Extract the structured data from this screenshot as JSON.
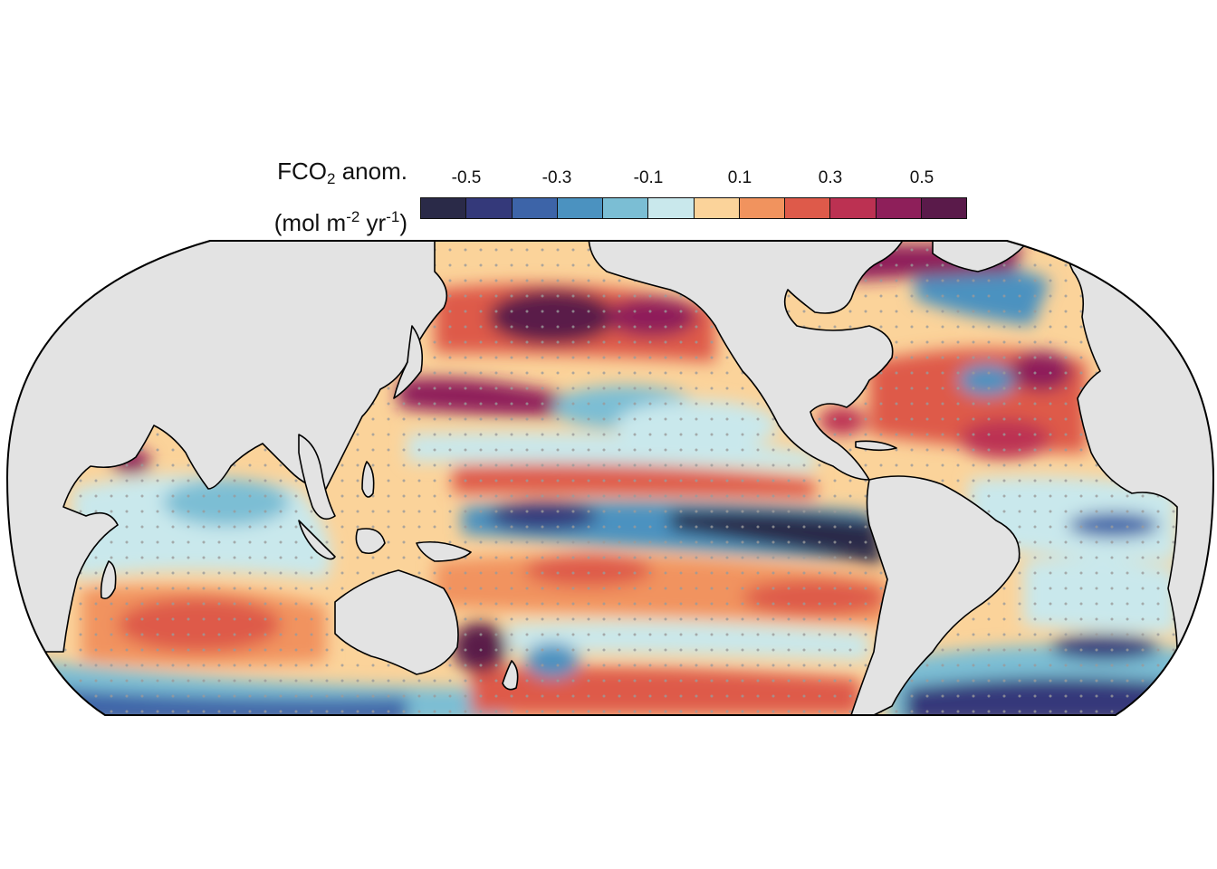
{
  "legend": {
    "title_line1_main": "FCO",
    "title_line1_sub": "2",
    "title_line1_rest": " anom.",
    "title_line2_a": "(mol m",
    "title_line2_sup1": "-2",
    "title_line2_b": " yr",
    "title_line2_sup2": "-1",
    "title_line2_c": ")",
    "tick_labels": [
      "-0.5",
      "-0.3",
      "-0.1",
      "0.1",
      "0.3",
      "0.5"
    ],
    "bins": [
      -0.6,
      -0.5,
      -0.4,
      -0.3,
      -0.2,
      -0.1,
      0.0,
      0.1,
      0.2,
      0.3,
      0.4,
      0.5,
      0.6
    ],
    "colors": [
      "#2a2a48",
      "#34397a",
      "#3d64a8",
      "#4b92c0",
      "#7bbed4",
      "#c9e8ec",
      "#fbd39a",
      "#f1935e",
      "#de5a4a",
      "#bc3152",
      "#8e1f5a",
      "#5a1a4a"
    ]
  },
  "map": {
    "projection": "Robinson-like (Pacific-centered)",
    "land_color": "#e3e3e3",
    "coastline_color": "#000000",
    "stipple_color": "#9a9a9a"
  }
}
